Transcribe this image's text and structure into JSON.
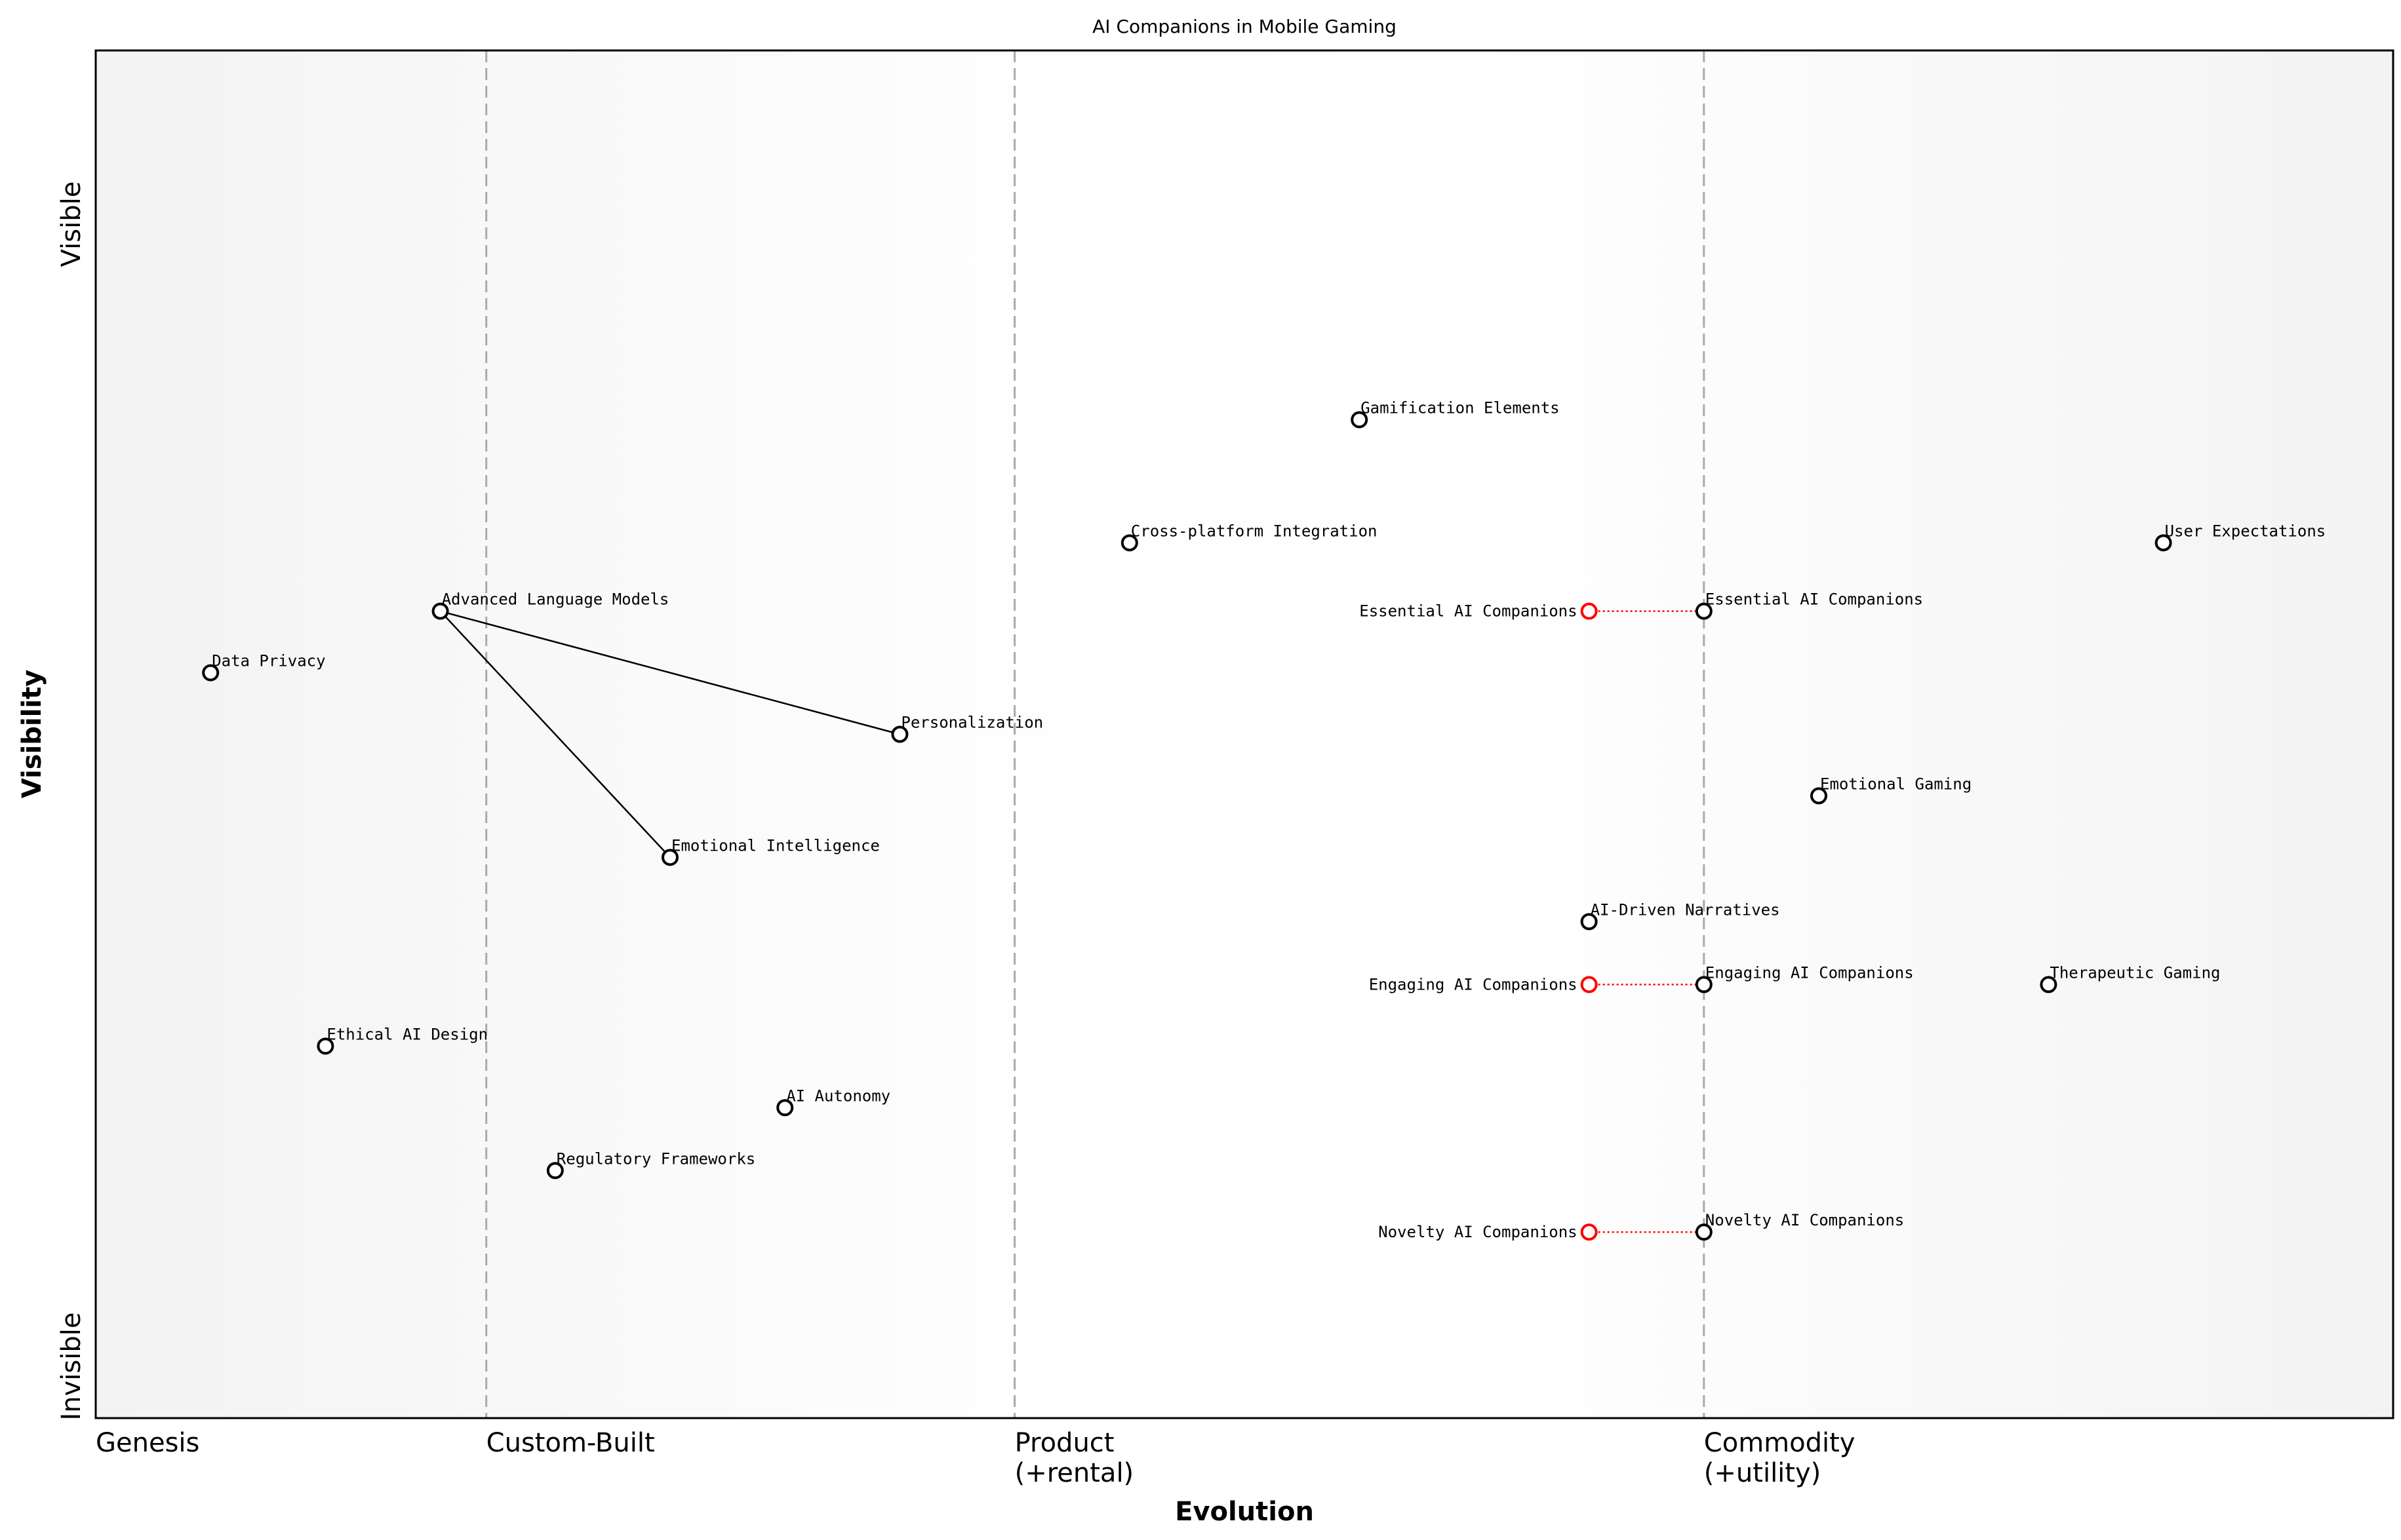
{
  "chart_data": {
    "type": "wardley-map",
    "title": "AI Companions in Mobile Gaming",
    "xlabel": "Evolution",
    "ylabel": "Visibility",
    "y_ticks": [
      {
        "label": "Invisible",
        "value": 0
      },
      {
        "label": "Visible",
        "value": 1
      }
    ],
    "xlim": [
      0,
      1
    ],
    "ylim": [
      0,
      1
    ],
    "stages": [
      {
        "label": "Genesis",
        "value": 0
      },
      {
        "label": "Custom-Built",
        "value": 0.17
      },
      {
        "label": "Product\n(+rental)",
        "value": 0.4
      },
      {
        "label": "Commodity\n(+utility)",
        "value": 0.7
      }
    ],
    "components": [
      {
        "name": "Gamification Elements",
        "evolution": 0.55,
        "visibility": 0.73
      },
      {
        "name": "Cross-platform Integration",
        "evolution": 0.45,
        "visibility": 0.64
      },
      {
        "name": "User Expectations",
        "evolution": 0.9,
        "visibility": 0.64
      },
      {
        "name": "Essential AI Companions",
        "evolution": 0.7,
        "visibility": 0.59
      },
      {
        "name": "Advanced Language Models",
        "evolution": 0.15,
        "visibility": 0.59
      },
      {
        "name": "Data Privacy",
        "evolution": 0.05,
        "visibility": 0.545
      },
      {
        "name": "Personalization",
        "evolution": 0.35,
        "visibility": 0.5
      },
      {
        "name": "Emotional Gaming",
        "evolution": 0.75,
        "visibility": 0.455
      },
      {
        "name": "Emotional Intelligence",
        "evolution": 0.25,
        "visibility": 0.41
      },
      {
        "name": "AI-Driven Narratives",
        "evolution": 0.65,
        "visibility": 0.363
      },
      {
        "name": "Engaging AI Companions",
        "evolution": 0.7,
        "visibility": 0.317
      },
      {
        "name": "Therapeutic Gaming",
        "evolution": 0.85,
        "visibility": 0.317
      },
      {
        "name": "Ethical AI Design",
        "evolution": 0.1,
        "visibility": 0.272
      },
      {
        "name": "AI Autonomy",
        "evolution": 0.3,
        "visibility": 0.227
      },
      {
        "name": "Regulatory Frameworks",
        "evolution": 0.2,
        "visibility": 0.181
      },
      {
        "name": "Novelty AI Companions",
        "evolution": 0.7,
        "visibility": 0.136
      }
    ],
    "evolving": [
      {
        "name": "Essential AI Companions",
        "from_evolution": 0.65,
        "to_evolution": 0.7,
        "visibility": 0.59
      },
      {
        "name": "Engaging AI Companions",
        "from_evolution": 0.65,
        "to_evolution": 0.7,
        "visibility": 0.317
      },
      {
        "name": "Novelty AI Companions",
        "from_evolution": 0.65,
        "to_evolution": 0.7,
        "visibility": 0.136
      }
    ],
    "links": [
      [
        "Advanced Language Models",
        "Personalization"
      ],
      [
        "Advanced Language Models",
        "Emotional Intelligence"
      ]
    ],
    "colors": {
      "component": "#000000",
      "evolving": "#ff0000",
      "stage_line": "#aaaaaa",
      "background_edge": "#f4f4f4",
      "background_center": "#ffffff"
    }
  }
}
